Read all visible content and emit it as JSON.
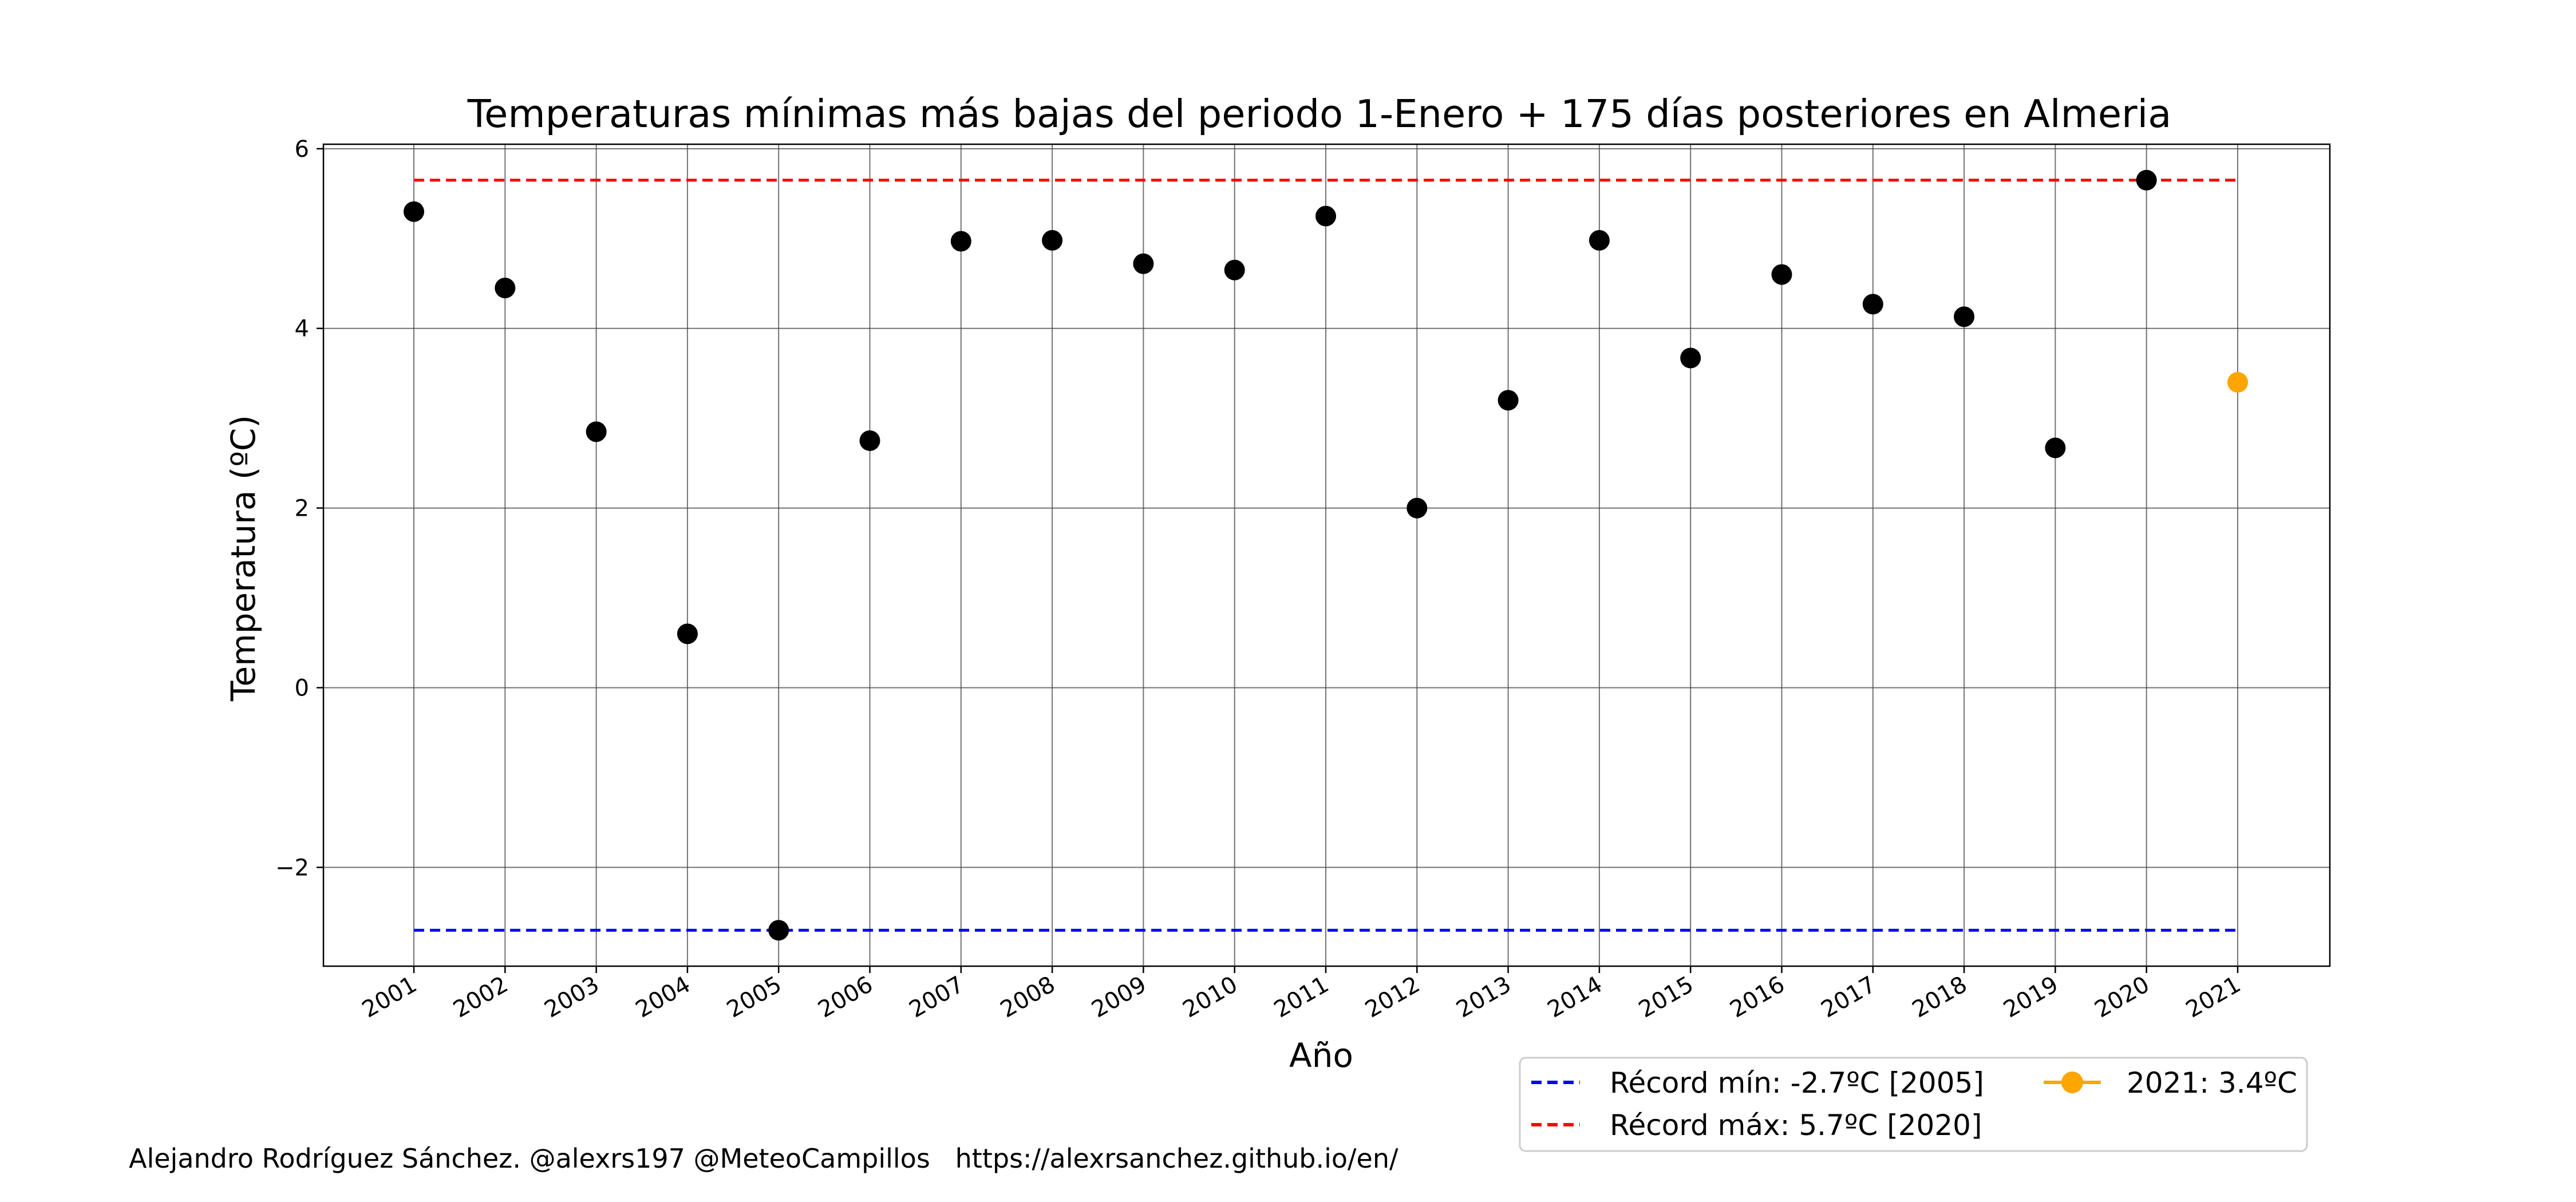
{
  "chart_data": {
    "type": "scatter",
    "title": "Temperaturas mínimas más bajas del periodo 1-Enero + 175 días posteriores en Almeria",
    "xlabel": "Año",
    "ylabel": "Temperatura (ºC)",
    "ylim": [
      -3.1,
      6.05
    ],
    "yticks": [
      -2,
      0,
      2,
      4,
      6
    ],
    "ytick_labels": [
      "−2",
      "0",
      "2",
      "4",
      "6"
    ],
    "grid": true,
    "categories": [
      "2001",
      "2002",
      "2003",
      "2004",
      "2005",
      "2006",
      "2007",
      "2008",
      "2009",
      "2010",
      "2011",
      "2012",
      "2013",
      "2014",
      "2015",
      "2016",
      "2017",
      "2018",
      "2019",
      "2020",
      "2021"
    ],
    "series": [
      {
        "values": [
          5.3,
          4.45,
          2.85,
          0.6,
          -2.7,
          2.75,
          4.97,
          4.98,
          4.72,
          4.65,
          5.25,
          2.0,
          3.2,
          4.98,
          3.67,
          4.6,
          4.27,
          4.13,
          2.67,
          5.65,
          null
        ],
        "color": "#000000"
      },
      {
        "values": [
          null,
          null,
          null,
          null,
          null,
          null,
          null,
          null,
          null,
          null,
          null,
          null,
          null,
          null,
          null,
          null,
          null,
          null,
          null,
          null,
          3.4
        ],
        "color": "#ffa500"
      }
    ],
    "reference_lines": [
      {
        "label": "Récord mín: -2.7ºC [2005]",
        "value": -2.7,
        "color": "#0000ff",
        "style": "dashed"
      },
      {
        "label": "Récord máx: 5.7ºC [2020]",
        "value": 5.65,
        "color": "#ff0000",
        "style": "dashed"
      }
    ],
    "legend": {
      "placement": "bottom-right, below plot",
      "entries": [
        {
          "label": "Récord mín: -2.7ºC [2005]",
          "color": "#0000ff",
          "style": "dashed"
        },
        {
          "label": "Récord máx: 5.7ºC [2020]",
          "color": "#ff0000",
          "style": "dashed"
        },
        {
          "label": "2021: 3.4ºC",
          "color": "#ffa500",
          "style": "line-marker"
        }
      ]
    }
  },
  "footer": {
    "credit": "Alejandro Rodríguez Sánchez. @alexrs197 @MeteoCampillos   https://alexrsanchez.github.io/en/"
  }
}
